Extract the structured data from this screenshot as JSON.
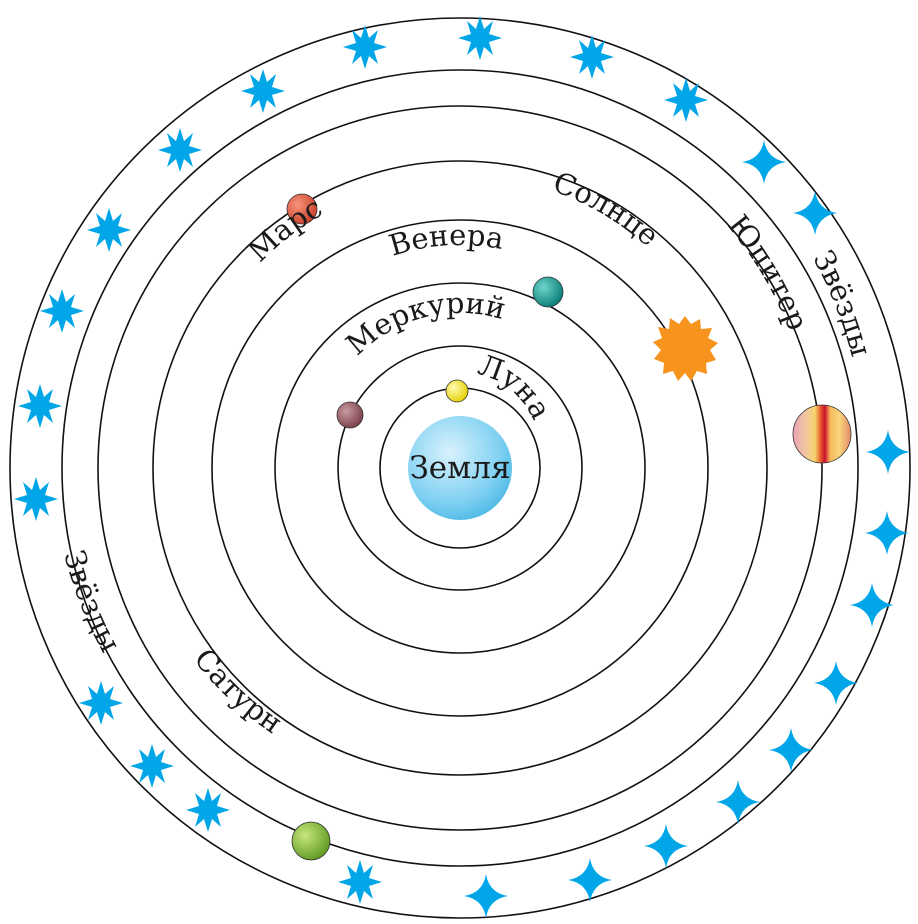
{
  "labels": {
    "earth": "Земля",
    "moon": "Луна",
    "mercury": "Меркурий",
    "venus": "Венера",
    "sun": "Солнце",
    "mars": "Марс",
    "jupiter": "Юпитер",
    "saturn": "Сатурн",
    "stars_right": "Звёзды",
    "stars_left": "Звёзды"
  },
  "colors": {
    "earth": "#7fd0f2",
    "moon": "#f2e21c",
    "mercury": "#9b5e66",
    "venus": "#0fa59c",
    "sun": "#f7941d",
    "mars": "#e35a3c",
    "jupiter": "#e8a0a0",
    "saturn": "#8cbf3f",
    "stars": "#00a6e8"
  },
  "icons": {
    "stars_upper_left": "starburst-icon",
    "stars_lower_right": "four-point-star-icon"
  }
}
